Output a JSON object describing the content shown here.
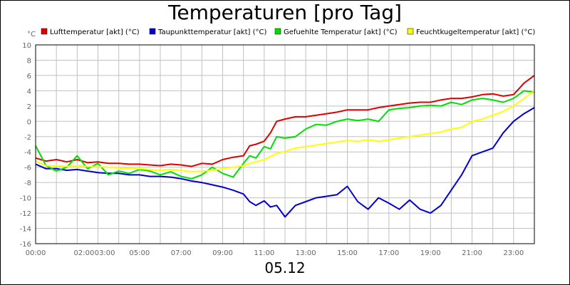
{
  "chart_data": {
    "type": "line",
    "title": "Temperaturen [pro Tag]",
    "ylabel": "°C",
    "xlabel": "05.12",
    "ylim": [
      -16,
      10
    ],
    "yticks": [
      -16,
      -14,
      -12,
      -10,
      -8,
      -6,
      -4,
      -2,
      0,
      2,
      4,
      6,
      8,
      10
    ],
    "xlim": [
      0,
      24
    ],
    "xtick_labels": [
      {
        "h": 0,
        "label": "00:00"
      },
      {
        "h": 2.33,
        "label": "02:00"
      },
      {
        "h": 3.33,
        "label": "03:00"
      },
      {
        "h": 5,
        "label": "05:00"
      },
      {
        "h": 7,
        "label": "07:00"
      },
      {
        "h": 9,
        "label": "09:00"
      },
      {
        "h": 11,
        "label": "11:00"
      },
      {
        "h": 13,
        "label": "13:00"
      },
      {
        "h": 15,
        "label": "15:00"
      },
      {
        "h": 17,
        "label": "17:00"
      },
      {
        "h": 19,
        "label": "19:00"
      },
      {
        "h": 21,
        "label": "21:00"
      },
      {
        "h": 23,
        "label": "23:00"
      }
    ],
    "grid": true,
    "legend_position": "top",
    "series": [
      {
        "name": "Lufttemperatur [akt] (°C)",
        "color": "#e00000",
        "x": [
          0,
          0.5,
          1,
          1.5,
          2,
          2.5,
          3,
          3.5,
          4,
          4.5,
          5,
          5.5,
          6,
          6.5,
          7,
          7.5,
          8,
          8.5,
          9,
          9.5,
          10,
          10.3,
          10.6,
          11,
          11.3,
          11.6,
          12,
          12.5,
          13,
          13.5,
          14,
          14.5,
          15,
          15.5,
          16,
          16.5,
          17,
          17.5,
          18,
          18.5,
          19,
          19.5,
          20,
          20.5,
          21,
          21.5,
          22,
          22.5,
          23,
          23.5,
          24
        ],
        "y": [
          -4.8,
          -5.2,
          -5.0,
          -5.3,
          -5.0,
          -5.4,
          -5.3,
          -5.5,
          -5.5,
          -5.6,
          -5.6,
          -5.7,
          -5.8,
          -5.6,
          -5.7,
          -5.9,
          -5.5,
          -5.6,
          -5.0,
          -4.7,
          -4.5,
          -3.2,
          -3.0,
          -2.6,
          -1.5,
          0.0,
          0.3,
          0.6,
          0.6,
          0.8,
          1.0,
          1.2,
          1.5,
          1.5,
          1.5,
          1.8,
          2.0,
          2.2,
          2.4,
          2.5,
          2.5,
          2.8,
          3.0,
          3.0,
          3.2,
          3.5,
          3.6,
          3.3,
          3.5,
          5.0,
          6.0
        ]
      },
      {
        "name": "Taupunkttemperatur [akt] (°C)",
        "color": "#0000d0",
        "x": [
          0,
          0.5,
          1,
          1.5,
          2,
          2.5,
          3,
          3.5,
          4,
          4.5,
          5,
          5.5,
          6,
          6.5,
          7,
          7.5,
          8,
          8.5,
          9,
          9.5,
          10,
          10.3,
          10.6,
          11,
          11.3,
          11.6,
          12,
          12.5,
          13,
          13.5,
          14,
          14.5,
          15,
          15.5,
          16,
          16.5,
          17,
          17.5,
          18,
          18.5,
          19,
          19.5,
          20,
          20.5,
          21,
          21.5,
          22,
          22.5,
          23,
          23.5,
          24
        ],
        "y": [
          -5.6,
          -6.2,
          -6.2,
          -6.4,
          -6.3,
          -6.5,
          -6.7,
          -6.8,
          -6.8,
          -7.0,
          -7.0,
          -7.2,
          -7.2,
          -7.3,
          -7.5,
          -7.8,
          -8.0,
          -8.3,
          -8.6,
          -9.0,
          -9.5,
          -10.5,
          -11.0,
          -10.4,
          -11.2,
          -11.0,
          -12.5,
          -11.0,
          -10.5,
          -10.0,
          -9.8,
          -9.6,
          -8.5,
          -10.5,
          -11.5,
          -10.0,
          -10.7,
          -11.5,
          -10.3,
          -11.5,
          -12.0,
          -11.0,
          -9.0,
          -7.0,
          -4.5,
          -4.0,
          -3.5,
          -1.5,
          0.0,
          1.0,
          1.8
        ]
      },
      {
        "name": "Gefuehlte Temperatur [akt] (°C)",
        "color": "#00e000",
        "x": [
          0,
          0.5,
          1,
          1.5,
          2,
          2.5,
          3,
          3.5,
          4,
          4.5,
          5,
          5.5,
          6,
          6.5,
          7,
          7.5,
          8,
          8.5,
          9,
          9.5,
          10,
          10.3,
          10.6,
          11,
          11.3,
          11.6,
          12,
          12.5,
          13,
          13.5,
          14,
          14.5,
          15,
          15.5,
          16,
          16.5,
          17,
          17.5,
          18,
          18.5,
          19,
          19.5,
          20,
          20.5,
          21,
          21.5,
          22,
          22.5,
          23,
          23.5,
          24
        ],
        "y": [
          -3.2,
          -5.8,
          -6.5,
          -6.0,
          -4.5,
          -6.2,
          -5.5,
          -7.0,
          -6.5,
          -6.8,
          -6.3,
          -6.5,
          -7.0,
          -6.6,
          -7.2,
          -7.5,
          -7.0,
          -6.0,
          -6.8,
          -7.3,
          -5.5,
          -4.5,
          -4.8,
          -3.3,
          -3.6,
          -2.0,
          -2.2,
          -2.0,
          -1.0,
          -0.4,
          -0.5,
          0.0,
          0.3,
          0.1,
          0.3,
          0.0,
          1.5,
          1.7,
          1.8,
          2.0,
          2.1,
          2.0,
          2.5,
          2.2,
          2.8,
          3.0,
          2.8,
          2.5,
          3.0,
          4.0,
          3.8
        ]
      },
      {
        "name": "Feuchtkugeltemperatur [akt] (°C)",
        "color": "#ffff00",
        "x": [
          0,
          0.5,
          1,
          1.5,
          2,
          2.5,
          3,
          3.5,
          4,
          4.5,
          5,
          5.5,
          6,
          6.5,
          7,
          7.5,
          8,
          8.5,
          9,
          9.5,
          10,
          10.3,
          10.6,
          11,
          11.3,
          11.6,
          12,
          12.5,
          13,
          13.5,
          14,
          14.5,
          15,
          15.5,
          16,
          16.5,
          17,
          17.5,
          18,
          18.5,
          19,
          19.5,
          20,
          20.5,
          21,
          21.5,
          22,
          22.5,
          23,
          23.5,
          24
        ],
        "y": [
          -5.2,
          -5.8,
          -5.8,
          -5.9,
          -5.8,
          -5.9,
          -5.9,
          -6.0,
          -6.1,
          -6.2,
          -6.2,
          -6.3,
          -6.4,
          -6.3,
          -6.4,
          -6.6,
          -6.5,
          -6.4,
          -6.2,
          -6.0,
          -5.8,
          -5.5,
          -5.3,
          -5.0,
          -4.6,
          -4.2,
          -3.9,
          -3.5,
          -3.3,
          -3.1,
          -2.9,
          -2.7,
          -2.5,
          -2.6,
          -2.4,
          -2.6,
          -2.4,
          -2.2,
          -2.0,
          -1.8,
          -1.6,
          -1.4,
          -1.0,
          -0.8,
          0.0,
          0.3,
          0.8,
          1.3,
          2.0,
          3.0,
          4.0
        ]
      }
    ]
  }
}
